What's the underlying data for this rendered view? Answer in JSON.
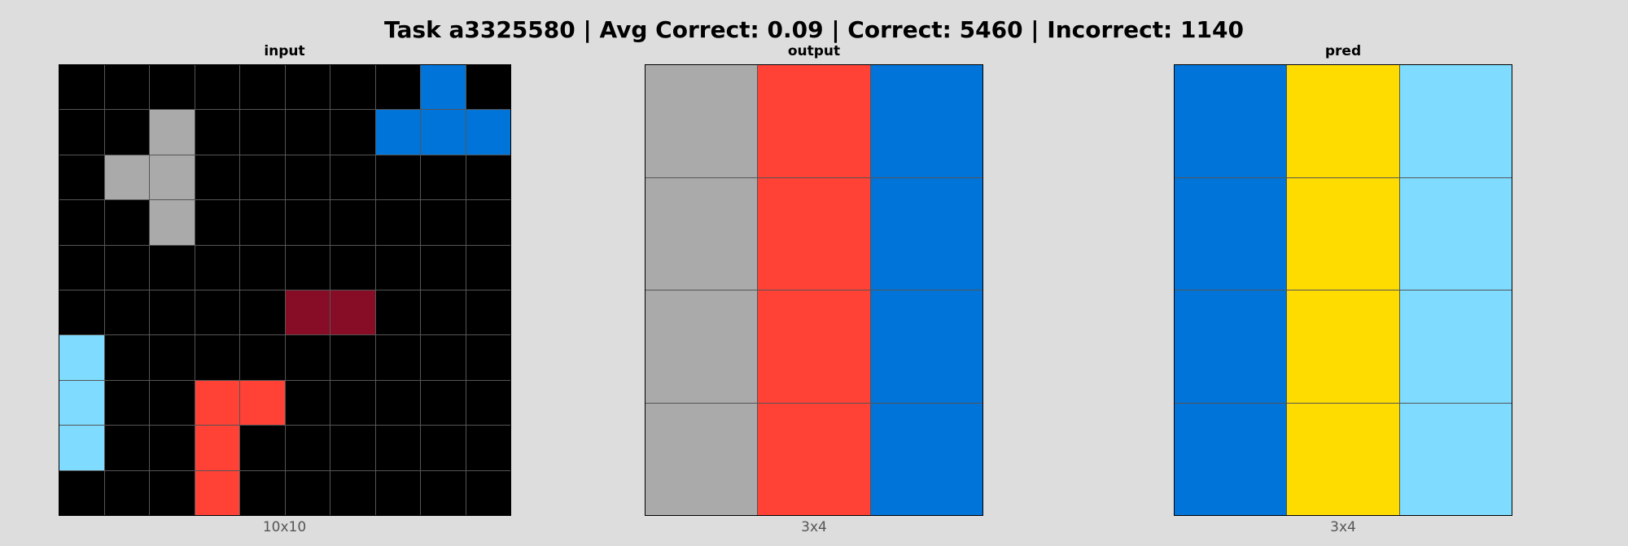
{
  "title": "Task a3325580 | Avg Correct: 0.09 | Correct: 5460 | Incorrect: 1140",
  "colors": {
    "0": "#000000",
    "1": "#0074D9",
    "2": "#FF4136",
    "3": "#2ECC40",
    "4": "#FFDC00",
    "5": "#AAAAAA",
    "6": "#F012BE",
    "7": "#FF851B",
    "8": "#7FDBFF",
    "9": "#870C25"
  },
  "panels": [
    {
      "title": "input",
      "dims": "10x10",
      "grid": [
        [
          0,
          0,
          0,
          0,
          0,
          0,
          0,
          0,
          1,
          0
        ],
        [
          0,
          0,
          5,
          0,
          0,
          0,
          0,
          1,
          1,
          1
        ],
        [
          0,
          5,
          5,
          0,
          0,
          0,
          0,
          0,
          0,
          0
        ],
        [
          0,
          0,
          5,
          0,
          0,
          0,
          0,
          0,
          0,
          0
        ],
        [
          0,
          0,
          0,
          0,
          0,
          0,
          0,
          0,
          0,
          0
        ],
        [
          0,
          0,
          0,
          0,
          0,
          9,
          9,
          0,
          0,
          0
        ],
        [
          8,
          0,
          0,
          0,
          0,
          0,
          0,
          0,
          0,
          0
        ],
        [
          8,
          0,
          0,
          2,
          2,
          0,
          0,
          0,
          0,
          0
        ],
        [
          8,
          0,
          0,
          2,
          0,
          0,
          0,
          0,
          0,
          0
        ],
        [
          0,
          0,
          0,
          2,
          0,
          0,
          0,
          0,
          0,
          0
        ]
      ]
    },
    {
      "title": "output",
      "dims": "3x4",
      "grid": [
        [
          5,
          2,
          1
        ],
        [
          5,
          2,
          1
        ],
        [
          5,
          2,
          1
        ],
        [
          5,
          2,
          1
        ]
      ]
    },
    {
      "title": "pred",
      "dims": "3x4",
      "grid": [
        [
          1,
          4,
          8
        ],
        [
          1,
          4,
          8
        ],
        [
          1,
          4,
          8
        ],
        [
          1,
          4,
          8
        ]
      ]
    }
  ]
}
